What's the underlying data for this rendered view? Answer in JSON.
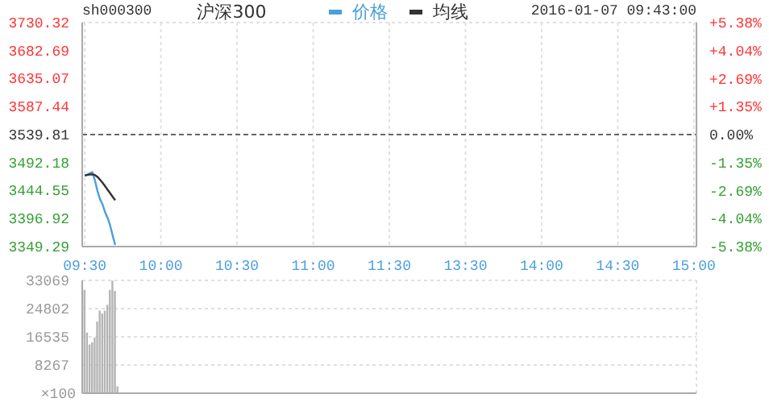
{
  "chart_data": [
    {
      "type": "line",
      "title": "沪深300",
      "subtitle": "sh000300",
      "annotations": [
        "2016-01-07 09:43:00"
      ],
      "legend": "top",
      "grid": true,
      "categories": [
        "09:30",
        null,
        null,
        null,
        null,
        null,
        null,
        null,
        null,
        null,
        null,
        null,
        null,
        null,
        null,
        null,
        null,
        null,
        null,
        null,
        null,
        null,
        null,
        null,
        null,
        null,
        null,
        null,
        null,
        null,
        "10:00",
        null,
        null,
        null,
        null,
        null,
        null,
        null,
        null,
        null,
        null,
        null,
        null,
        null,
        null,
        null,
        null,
        null,
        null,
        null,
        null,
        null,
        null,
        null,
        null,
        null,
        null,
        null,
        null,
        null,
        "10:30",
        null,
        null,
        null,
        null,
        null,
        null,
        null,
        null,
        null,
        null,
        null,
        null,
        null,
        null,
        null,
        null,
        null,
        null,
        null,
        null,
        null,
        null,
        null,
        null,
        null,
        null,
        null,
        null,
        null,
        "11:00",
        null,
        null,
        null,
        null,
        null,
        null,
        null,
        null,
        null,
        null,
        null,
        null,
        null,
        null,
        null,
        null,
        null,
        null,
        null,
        null,
        null,
        null,
        null,
        null,
        null,
        null,
        null,
        null,
        null,
        "11:30",
        null,
        null,
        null,
        null,
        null,
        null,
        null,
        null,
        null,
        null,
        null,
        null,
        null,
        null,
        null,
        null,
        null,
        null,
        null,
        null,
        null,
        null,
        null,
        null,
        null,
        null,
        null,
        null,
        null,
        "13:30",
        null,
        null,
        null,
        null,
        null,
        null,
        null,
        null,
        null,
        null,
        null,
        null,
        null,
        null,
        null,
        null,
        null,
        null,
        null,
        null,
        null,
        null,
        null,
        null,
        null,
        null,
        null,
        null,
        null,
        "14:00",
        null,
        null,
        null,
        null,
        null,
        null,
        null,
        null,
        null,
        null,
        null,
        null,
        null,
        null,
        null,
        null,
        null,
        null,
        null,
        null,
        null,
        null,
        null,
        null,
        null,
        null,
        null,
        null,
        null,
        "14:30",
        null,
        null,
        null,
        null,
        null,
        null,
        null,
        null,
        null,
        null,
        null,
        null,
        null,
        null,
        null,
        null,
        null,
        null,
        null,
        null,
        null,
        null,
        null,
        null,
        null,
        null,
        null,
        null,
        null,
        "15:00"
      ],
      "series": [
        {
          "name": "价格",
          "color": "#4a9fdc",
          "values": [
            3470,
            3472,
            3474,
            3476,
            3462,
            3444,
            3430,
            3421,
            3408,
            3398,
            3385,
            3368,
            3352,
            null,
            null,
            null,
            null,
            null,
            null,
            null,
            null,
            null,
            null,
            null,
            null,
            null,
            null,
            null,
            null,
            null,
            null,
            null,
            null,
            null,
            null,
            null,
            null,
            null,
            null,
            null,
            null,
            null,
            null,
            null,
            null,
            null,
            null,
            null,
            null,
            null,
            null,
            null,
            null,
            null,
            null,
            null,
            null,
            null,
            null,
            null,
            null,
            null,
            null,
            null,
            null,
            null,
            null,
            null,
            null,
            null,
            null,
            null,
            null,
            null,
            null,
            null,
            null,
            null,
            null,
            null,
            null,
            null,
            null,
            null,
            null,
            null,
            null,
            null,
            null,
            null,
            null,
            null,
            null,
            null,
            null,
            null,
            null,
            null,
            null,
            null,
            null,
            null,
            null,
            null,
            null,
            null,
            null,
            null,
            null,
            null,
            null,
            null,
            null,
            null,
            null,
            null,
            null,
            null,
            null,
            null,
            null,
            null,
            null,
            null,
            null,
            null,
            null,
            null,
            null,
            null,
            null,
            null,
            null,
            null,
            null,
            null,
            null,
            null,
            null,
            null,
            null,
            null,
            null,
            null,
            null,
            null,
            null,
            null,
            null,
            null,
            null,
            null,
            null,
            null,
            null,
            null,
            null,
            null,
            null,
            null,
            null,
            null,
            null,
            null,
            null,
            null,
            null,
            null,
            null,
            null,
            null,
            null,
            null,
            null,
            null,
            null,
            null,
            null,
            null,
            null,
            null,
            null,
            null,
            null,
            null,
            null,
            null,
            null,
            null,
            null,
            null,
            null,
            null,
            null,
            null,
            null,
            null,
            null,
            null,
            null,
            null,
            null,
            null,
            null,
            null,
            null,
            null,
            null,
            null,
            null,
            null,
            null,
            null,
            null,
            null,
            null,
            null,
            null,
            null,
            null,
            null,
            null,
            null,
            null,
            null,
            null,
            null,
            null,
            null,
            null,
            null,
            null,
            null,
            null,
            null,
            null,
            null,
            null,
            null,
            null,
            null
          ]
        },
        {
          "name": "均线",
          "color": "#333333",
          "values": [
            3470,
            3471,
            3472,
            3472,
            3471,
            3468,
            3463,
            3458,
            3452,
            3446,
            3440,
            3434,
            3428,
            null,
            null,
            null,
            null,
            null,
            null,
            null,
            null,
            null,
            null,
            null,
            null,
            null,
            null,
            null,
            null,
            null,
            null,
            null,
            null,
            null,
            null,
            null,
            null,
            null,
            null,
            null,
            null,
            null,
            null,
            null,
            null,
            null,
            null,
            null,
            null,
            null,
            null,
            null,
            null,
            null,
            null,
            null,
            null,
            null,
            null,
            null,
            null,
            null,
            null,
            null,
            null,
            null,
            null,
            null,
            null,
            null,
            null,
            null,
            null,
            null,
            null,
            null,
            null,
            null,
            null,
            null,
            null,
            null,
            null,
            null,
            null,
            null,
            null,
            null,
            null,
            null,
            null,
            null,
            null,
            null,
            null,
            null,
            null,
            null,
            null,
            null,
            null,
            null,
            null,
            null,
            null,
            null,
            null,
            null,
            null,
            null,
            null,
            null,
            null,
            null,
            null,
            null,
            null,
            null,
            null,
            null,
            null,
            null,
            null,
            null,
            null,
            null,
            null,
            null,
            null,
            null,
            null,
            null,
            null,
            null,
            null,
            null,
            null,
            null,
            null,
            null,
            null,
            null,
            null,
            null,
            null,
            null,
            null,
            null,
            null,
            null,
            null,
            null,
            null,
            null,
            null,
            null,
            null,
            null,
            null,
            null,
            null,
            null,
            null,
            null,
            null,
            null,
            null,
            null,
            null,
            null,
            null,
            null,
            null,
            null,
            null,
            null,
            null,
            null,
            null,
            null,
            null,
            null,
            null,
            null,
            null,
            null,
            null,
            null,
            null,
            null,
            null,
            null,
            null,
            null,
            null,
            null,
            null,
            null,
            null,
            null,
            null,
            null,
            null,
            null,
            null,
            null,
            null,
            null,
            null,
            null,
            null,
            null,
            null,
            null,
            null,
            null,
            null,
            null,
            null,
            null,
            null,
            null,
            null,
            null,
            null,
            null,
            null,
            null,
            null,
            null,
            null,
            null,
            null,
            null,
            null,
            null,
            null,
            null,
            null,
            null,
            null
          ]
        }
      ],
      "ylim": [
        3349.29,
        3730.32
      ],
      "yticks": [
        3349.29,
        3396.92,
        3444.55,
        3492.18,
        3539.81,
        3587.44,
        3635.07,
        3682.69,
        3730.32
      ],
      "y2lim": [
        -5.38,
        5.38
      ],
      "y2ticks": [
        {
          "value": -5.38,
          "label": "-5.38%"
        },
        {
          "value": -4.04,
          "label": "-4.04%"
        },
        {
          "value": -2.69,
          "label": "-2.69%"
        },
        {
          "value": -1.35,
          "label": "-1.35%"
        },
        {
          "value": 0,
          "label": "0.00%"
        },
        {
          "value": 1.35,
          "label": "+1.35%"
        },
        {
          "value": 2.69,
          "label": "+2.69%"
        },
        {
          "value": 4.04,
          "label": "+4.04%"
        },
        {
          "value": 5.38,
          "label": "+5.38%"
        }
      ],
      "ref_lines": [
        {
          "axis": "y",
          "value": 3539.81,
          "color": "#666666",
          "line_style": "dashed"
        }
      ]
    },
    {
      "type": "bar",
      "grid": true,
      "tick_labels": "y",
      "color": "#b4b4b4",
      "ylabel": "×100",
      "categories": [
        null,
        null,
        null,
        null,
        null,
        null,
        null,
        null,
        null,
        null,
        null,
        null,
        null,
        null,
        null,
        null,
        null,
        null,
        null,
        null,
        null,
        null,
        null,
        null,
        null,
        null,
        null,
        null,
        null,
        null,
        null,
        null,
        null,
        null,
        null,
        null,
        null,
        null,
        null,
        null,
        null,
        null,
        null,
        null,
        null,
        null,
        null,
        null,
        null,
        null,
        null,
        null,
        null,
        null,
        null,
        null,
        null,
        null,
        null,
        null,
        null,
        null,
        null,
        null,
        null,
        null,
        null,
        null,
        null,
        null,
        null,
        null,
        null,
        null,
        null,
        null,
        null,
        null,
        null,
        null,
        null,
        null,
        null,
        null,
        null,
        null,
        null,
        null,
        null,
        null,
        null,
        null,
        null,
        null,
        null,
        null,
        null,
        null,
        null,
        null,
        null,
        null,
        null,
        null,
        null,
        null,
        null,
        null,
        null,
        null,
        null,
        null,
        null,
        null,
        null,
        null,
        null,
        null,
        null,
        null,
        null,
        null,
        null,
        null,
        null,
        null,
        null,
        null,
        null,
        null,
        null,
        null,
        null,
        null,
        null,
        null,
        null,
        null,
        null,
        null,
        null,
        null,
        null,
        null,
        null,
        null,
        null,
        null,
        null,
        null,
        null,
        null,
        null,
        null,
        null,
        null,
        null,
        null,
        null,
        null,
        null,
        null,
        null,
        null,
        null,
        null,
        null,
        null,
        null,
        null,
        null,
        null,
        null,
        null,
        null,
        null,
        null,
        null,
        null,
        null,
        null,
        null,
        null,
        null,
        null,
        null,
        null,
        null,
        null,
        null,
        null,
        null,
        null,
        null,
        null,
        null,
        null,
        null,
        null,
        null,
        null,
        null,
        null,
        null,
        null,
        null,
        null,
        null,
        null,
        null,
        null,
        null,
        null,
        null,
        null,
        null,
        null,
        null,
        null,
        null,
        null,
        null,
        null,
        null,
        null,
        null,
        null,
        null,
        null,
        null,
        null,
        null,
        null,
        null,
        null,
        null,
        null,
        null,
        null,
        null,
        null
      ],
      "values": [
        30300,
        17800,
        14300,
        14900,
        16300,
        21000,
        24200,
        23300,
        24200,
        25900,
        30300,
        33000,
        30000,
        2000,
        null,
        null,
        null,
        null,
        null,
        null,
        null,
        null,
        null,
        null,
        null,
        null,
        null,
        null,
        null,
        null,
        null,
        null,
        null,
        null,
        null,
        null,
        null,
        null,
        null,
        null,
        null,
        null,
        null,
        null,
        null,
        null,
        null,
        null,
        null,
        null,
        null,
        null,
        null,
        null,
        null,
        null,
        null,
        null,
        null,
        null,
        null,
        null,
        null,
        null,
        null,
        null,
        null,
        null,
        null,
        null,
        null,
        null,
        null,
        null,
        null,
        null,
        null,
        null,
        null,
        null,
        null,
        null,
        null,
        null,
        null,
        null,
        null,
        null,
        null,
        null,
        null,
        null,
        null,
        null,
        null,
        null,
        null,
        null,
        null,
        null,
        null,
        null,
        null,
        null,
        null,
        null,
        null,
        null,
        null,
        null,
        null,
        null,
        null,
        null,
        null,
        null,
        null,
        null,
        null,
        null,
        null,
        null,
        null,
        null,
        null,
        null,
        null,
        null,
        null,
        null,
        null,
        null,
        null,
        null,
        null,
        null,
        null,
        null,
        null,
        null,
        null,
        null,
        null,
        null,
        null,
        null,
        null,
        null,
        null,
        null,
        null,
        null,
        null,
        null,
        null,
        null,
        null,
        null,
        null,
        null,
        null,
        null,
        null,
        null,
        null,
        null,
        null,
        null,
        null,
        null,
        null,
        null,
        null,
        null,
        null,
        null,
        null,
        null,
        null,
        null,
        null,
        null,
        null,
        null,
        null,
        null,
        null,
        null,
        null,
        null,
        null,
        null,
        null,
        null,
        null,
        null,
        null,
        null,
        null,
        null,
        null,
        null,
        null,
        null,
        null,
        null,
        null,
        null,
        null,
        null,
        null,
        null,
        null,
        null,
        null,
        null,
        null,
        null,
        null,
        null,
        null,
        null,
        null,
        null,
        null,
        null,
        null,
        null,
        null,
        null,
        null,
        null,
        null,
        null,
        null,
        null,
        null,
        null,
        null,
        null,
        null
      ],
      "ylim": [
        0,
        33069
      ],
      "yticks": [
        8267,
        16535,
        24802,
        33069
      ]
    }
  ]
}
